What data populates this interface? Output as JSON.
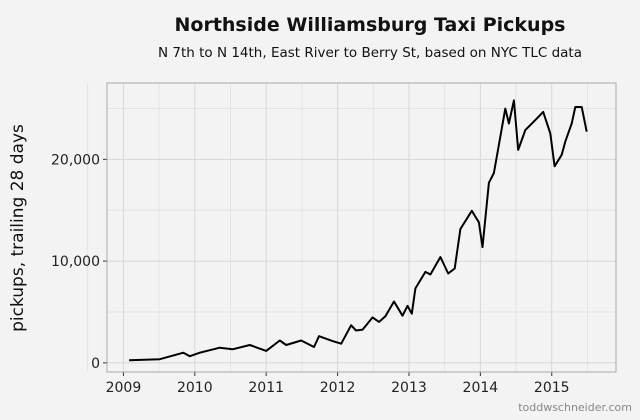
{
  "chart_data": {
    "type": "line",
    "title": "Northside Williamsburg Taxi Pickups",
    "subtitle": "N 7th to N 14th, East River to Berry St, based on NYC TLC data",
    "xlabel": "",
    "ylabel": "pickups, trailing 28 days",
    "xlim": [
      2008.77,
      2015.9
    ],
    "ylim": [
      -900,
      27500
    ],
    "x_ticks": [
      "2009",
      "2010",
      "2011",
      "2012",
      "2013",
      "2014",
      "2015"
    ],
    "y_ticks": [
      "0",
      "10,000",
      "20,000"
    ],
    "y_tick_values": [
      0,
      10000,
      20000
    ],
    "grid": true,
    "line_color": "#000000",
    "series": [
      {
        "x": [
          2009.08,
          2009.51,
          2009.84,
          2009.93,
          2010.07,
          2010.35,
          2010.53,
          2010.77,
          2011.0,
          2011.19,
          2011.28,
          2011.49,
          2011.67,
          2011.74,
          2011.93,
          2012.05,
          2012.19,
          2012.26,
          2012.35,
          2012.49,
          2012.58,
          2012.67,
          2012.79,
          2012.91,
          2012.98,
          2013.04,
          2013.09,
          2013.23,
          2013.3,
          2013.44,
          2013.55,
          2013.64,
          2013.72,
          2013.88,
          2013.98,
          2014.03,
          2014.12,
          2014.19,
          2014.35,
          2014.4,
          2014.47,
          2014.53,
          2014.63,
          2014.77,
          2014.88,
          2014.98,
          2015.04,
          2015.14,
          2015.19,
          2015.28,
          2015.33,
          2015.42,
          2015.49
        ],
        "y": [
          260,
          360,
          1000,
          650,
          1000,
          1490,
          1330,
          1750,
          1170,
          2200,
          1750,
          2200,
          1560,
          2620,
          2140,
          1880,
          3690,
          3180,
          3270,
          4470,
          4020,
          4570,
          6030,
          4630,
          5600,
          4830,
          7320,
          8940,
          8680,
          10400,
          8780,
          9270,
          13150,
          14940,
          13800,
          11370,
          17690,
          18660,
          24980,
          23520,
          25790,
          20930,
          22870,
          23850,
          24660,
          22550,
          19310,
          20440,
          21740,
          23520,
          25140,
          25140,
          22710
        ]
      }
    ]
  },
  "credit": "toddwschneider.com"
}
